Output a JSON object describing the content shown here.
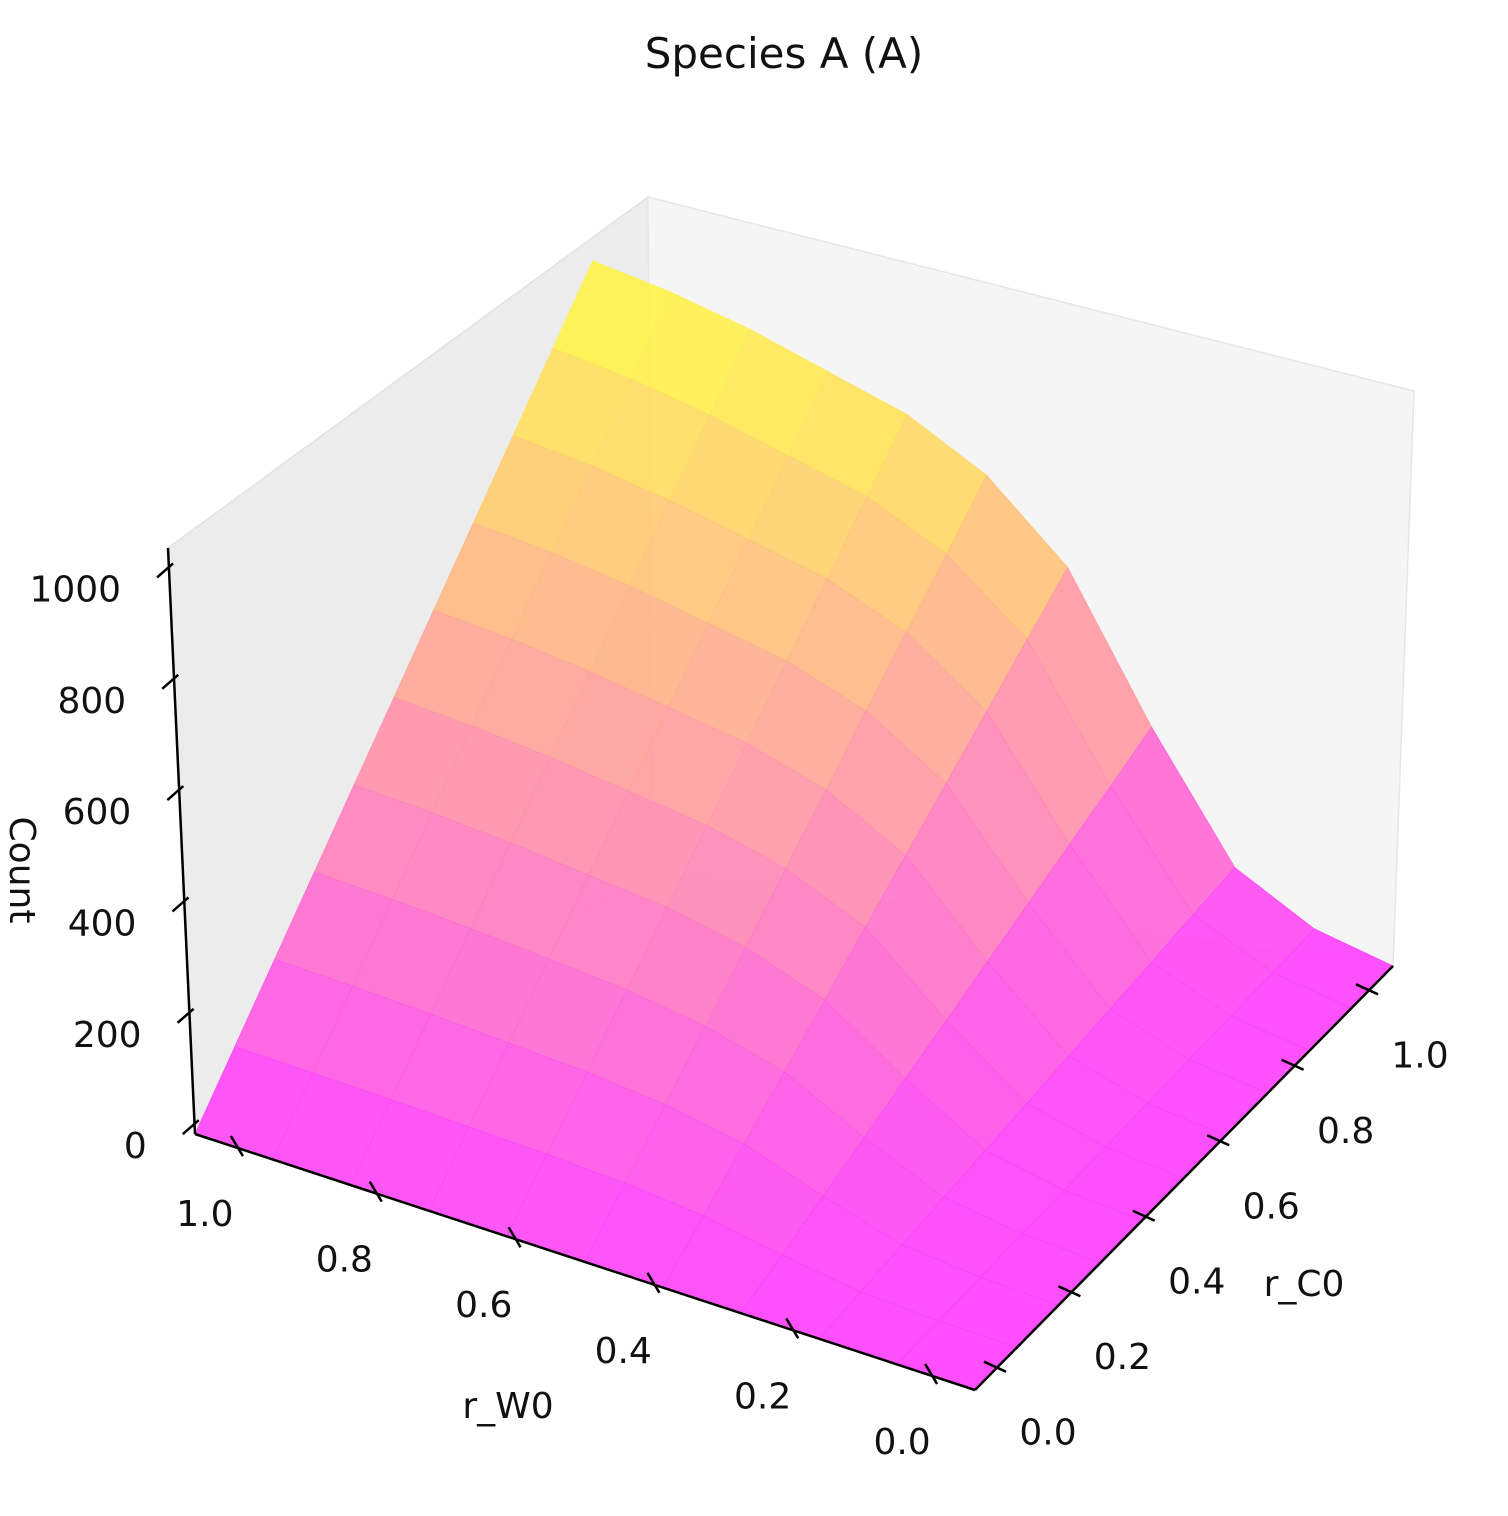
{
  "chart_data": {
    "type": "surface3d",
    "title": "Species A (A)",
    "xlabel": "r_W0",
    "ylabel": "r_C0",
    "zlabel": "Count",
    "xlim": [
      0,
      1
    ],
    "ylim": [
      0,
      1
    ],
    "zlim": [
      0,
      1000
    ],
    "x_ticks": [
      "0.0",
      "0.2",
      "0.4",
      "0.6",
      "0.8",
      "1.0"
    ],
    "y_ticks": [
      "0.0",
      "0.2",
      "0.4",
      "0.6",
      "0.8",
      "1.0"
    ],
    "z_ticks": [
      "0",
      "200",
      "400",
      "600",
      "800",
      "1000"
    ],
    "colormap": [
      "#ff40ff",
      "#ffff40"
    ],
    "grid": false,
    "x_grid": [
      0.0,
      0.1,
      0.2,
      0.3,
      0.4,
      0.5,
      0.6,
      0.7,
      0.8,
      0.9,
      1.0
    ],
    "y_grid": [
      0.0,
      0.1,
      0.2,
      0.3,
      0.4,
      0.5,
      0.6,
      0.7,
      0.8,
      0.9,
      1.0
    ],
    "z_values": [
      [
        0,
        0,
        0,
        0,
        0,
        0,
        0,
        0,
        0,
        0,
        0
      ],
      [
        0,
        2,
        4,
        6,
        8,
        10,
        12,
        14,
        16,
        18,
        20
      ],
      [
        0,
        8,
        16,
        25,
        33,
        41,
        50,
        58,
        66,
        75,
        83
      ],
      [
        0,
        28,
        57,
        85,
        114,
        142,
        171,
        199,
        228,
        256,
        285
      ],
      [
        0,
        52,
        104,
        156,
        208,
        261,
        313,
        365,
        417,
        469,
        521
      ],
      [
        0,
        64,
        128,
        191,
        255,
        319,
        383,
        447,
        511,
        574,
        638
      ],
      [
        0,
        70,
        140,
        210,
        280,
        350,
        420,
        490,
        560,
        630,
        700
      ],
      [
        0,
        73,
        146,
        219,
        292,
        365,
        438,
        511,
        584,
        657,
        730
      ],
      [
        0,
        76,
        152,
        228,
        304,
        380,
        456,
        532,
        608,
        684,
        760
      ],
      [
        0,
        78,
        156,
        234,
        312,
        390,
        468,
        546,
        624,
        702,
        780
      ],
      [
        0,
        79,
        158,
        237,
        316,
        395,
        474,
        553,
        632,
        711,
        790
      ]
    ]
  }
}
